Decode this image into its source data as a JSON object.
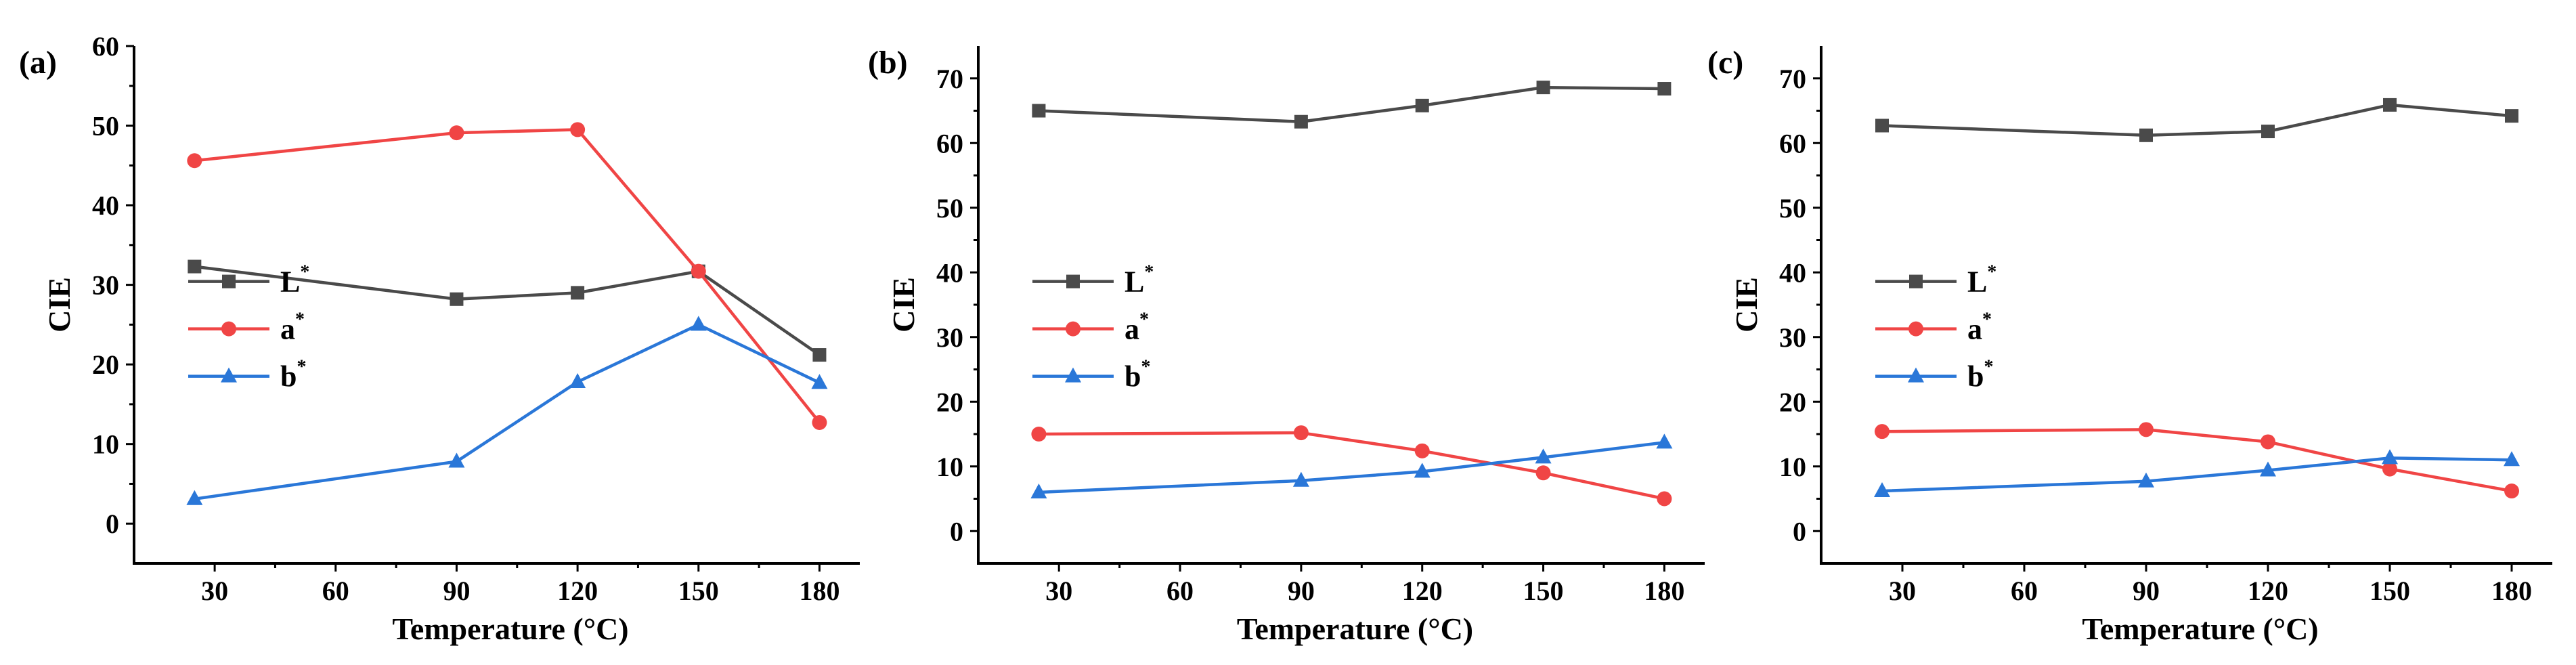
{
  "chart_data": [
    {
      "type": "line",
      "panel_label": "(a)",
      "xlabel": "Temperature (°C)",
      "ylabel": "CIE",
      "xlim": [
        10,
        190
      ],
      "ylim": [
        -5,
        60
      ],
      "xticks": [
        30,
        60,
        90,
        120,
        150,
        180
      ],
      "yticks": [
        0,
        10,
        20,
        30,
        40,
        50,
        60
      ],
      "x": [
        25,
        90,
        120,
        150,
        180
      ],
      "legend_position": "center-left",
      "series": [
        {
          "name": "L",
          "sup": "*",
          "color": "#4a4a4a",
          "marker": "square",
          "values": [
            32.3,
            28.2,
            29.0,
            31.7,
            21.2
          ]
        },
        {
          "name": "a",
          "sup": "*",
          "color": "#f04545",
          "marker": "circle",
          "values": [
            45.6,
            49.1,
            49.5,
            31.7,
            12.7
          ]
        },
        {
          "name": "b",
          "sup": "*",
          "color": "#2a77d8",
          "marker": "triangle",
          "values": [
            3.1,
            7.8,
            17.8,
            25.0,
            17.7
          ]
        }
      ]
    },
    {
      "type": "line",
      "panel_label": "(b)",
      "xlabel": "Temperature (°C)",
      "ylabel": "CIE",
      "xlim": [
        10,
        190
      ],
      "ylim": [
        -5,
        75
      ],
      "xticks": [
        30,
        60,
        90,
        120,
        150,
        180
      ],
      "yticks": [
        0,
        10,
        20,
        30,
        40,
        50,
        60,
        70
      ],
      "x": [
        25,
        90,
        120,
        150,
        180
      ],
      "legend_position": "center-left",
      "series": [
        {
          "name": "L",
          "sup": "*",
          "color": "#4a4a4a",
          "marker": "square",
          "values": [
            65.0,
            63.3,
            65.8,
            68.6,
            68.4
          ]
        },
        {
          "name": "a",
          "sup": "*",
          "color": "#f04545",
          "marker": "circle",
          "values": [
            15.0,
            15.2,
            12.4,
            9.0,
            5.0
          ]
        },
        {
          "name": "b",
          "sup": "*",
          "color": "#2a77d8",
          "marker": "triangle",
          "values": [
            6.0,
            7.8,
            9.2,
            11.4,
            13.7
          ]
        }
      ]
    },
    {
      "type": "line",
      "panel_label": "(c)",
      "xlabel": "Temperature (°C)",
      "ylabel": "CIE",
      "xlim": [
        10,
        190
      ],
      "ylim": [
        -5,
        75
      ],
      "xticks": [
        30,
        60,
        90,
        120,
        150,
        180
      ],
      "yticks": [
        0,
        10,
        20,
        30,
        40,
        50,
        60,
        70
      ],
      "x": [
        25,
        90,
        120,
        150,
        180
      ],
      "legend_position": "center-left",
      "series": [
        {
          "name": "L",
          "sup": "*",
          "color": "#4a4a4a",
          "marker": "square",
          "values": [
            62.7,
            61.2,
            61.8,
            65.9,
            64.2
          ]
        },
        {
          "name": "a",
          "sup": "*",
          "color": "#f04545",
          "marker": "circle",
          "values": [
            15.4,
            15.7,
            13.8,
            9.6,
            6.2
          ]
        },
        {
          "name": "b",
          "sup": "*",
          "color": "#2a77d8",
          "marker": "triangle",
          "values": [
            6.2,
            7.7,
            9.4,
            11.3,
            11.0
          ]
        }
      ]
    }
  ]
}
